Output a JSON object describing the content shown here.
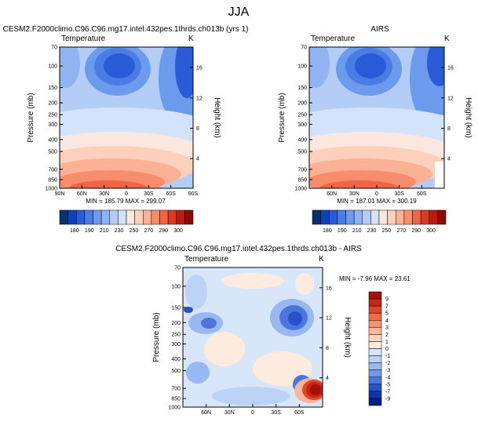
{
  "figure": {
    "season": "JJA"
  },
  "panels": [
    {
      "id": "model",
      "title": "CESM2.F2000climo.C96.C96.mg17.intel.432pes.1thrds.ch013b (yrs 1)",
      "left_label": "Temperature",
      "right_label": "K",
      "stats_text": "MIN = 185.79   MAX = 299.07"
    },
    {
      "id": "obs",
      "title": "AIRS",
      "left_label": "Temperature",
      "right_label": "K",
      "stats_text": "MIN = 187.01   MAX = 300.19"
    },
    {
      "id": "diff",
      "title": "CESM2.F2000climo.C96.C96.mg17.intel.432pes.1thrds.ch013b - AIRS",
      "left_label": "Temperature",
      "right_label": "K",
      "stats_text": "MIN =  -7.96  MAX =  23.61"
    }
  ],
  "chart_data": [
    {
      "type": "heatmap",
      "title": "CESM2.F2000climo.C96.C96.mg17.intel.432pes.1thrds.ch013b (yrs 1)",
      "xlabel": "",
      "ylabel": "Pressure (mb)",
      "y2label": "Height (km)",
      "x_ticks": [
        "90N",
        "60N",
        "30N",
        "0",
        "30S",
        "60S",
        "90S"
      ],
      "y_ticks": [
        "70",
        "100",
        "150",
        "200",
        "250",
        "300",
        "400",
        "500",
        "700",
        "850",
        "1000"
      ],
      "y2_ticks": [
        "16",
        "12",
        "8",
        "4"
      ],
      "colorbar_levels": [
        "180",
        "190",
        "210",
        "230",
        "250",
        "270",
        "290",
        "300"
      ],
      "min": 185.79,
      "max": 299.07
    },
    {
      "type": "heatmap",
      "title": "AIRS",
      "xlabel": "",
      "ylabel": "Pressure (mb)",
      "y2label": "Height (km)",
      "x_ticks": [
        "60N",
        "30N",
        "0",
        "30S",
        "60S"
      ],
      "y_ticks": [
        "70",
        "100",
        "150",
        "200",
        "250",
        "300",
        "400",
        "500",
        "700",
        "850",
        "1000"
      ],
      "y2_ticks": [
        "16",
        "12",
        "8",
        "4"
      ],
      "colorbar_levels": [
        "180",
        "190",
        "210",
        "230",
        "250",
        "270",
        "290",
        "300"
      ],
      "min": 187.01,
      "max": 300.19
    },
    {
      "type": "heatmap",
      "title": "CESM2.F2000climo.C96.C96.mg17.intel.432pes.1thrds.ch013b - AIRS",
      "xlabel": "",
      "ylabel": "Pressure (mb)",
      "y2label": "Height (km)",
      "x_ticks": [
        "60N",
        "30N",
        "0",
        "30S",
        "60S"
      ],
      "y_ticks": [
        "70",
        "100",
        "150",
        "200",
        "250",
        "300",
        "400",
        "500",
        "700",
        "850",
        "1000"
      ],
      "y2_ticks": [
        "16",
        "12",
        "8",
        "4"
      ],
      "colorbar_levels": [
        "9",
        "7",
        "5",
        "4",
        "3",
        "2",
        "1",
        "0",
        "-1",
        "-2",
        "-3",
        "-4",
        "-5",
        "-7",
        "-9"
      ],
      "min": -7.96,
      "max": 23.61
    }
  ],
  "colors": {
    "temp_scale": [
      "#08306b",
      "#0d3fbf",
      "#2a5bd7",
      "#4a7de3",
      "#6c9aec",
      "#90b4f2",
      "#b3cdf7",
      "#d3e3fb",
      "#fbe7de",
      "#fcd0bb",
      "#fbb194",
      "#f78d6b",
      "#ee6645",
      "#dc3a22",
      "#bd1a10",
      "#8b0a05"
    ],
    "diff_scale": [
      "#a50f05",
      "#c82612",
      "#e1452b",
      "#f06a4b",
      "#f69273",
      "#fab69c",
      "#fcd4c0",
      "#fdebe0",
      "#d8e6fa",
      "#bcd2f7",
      "#98b8f1",
      "#7098ea",
      "#4a76de",
      "#2852cb",
      "#0f33a9",
      "#06207c"
    ]
  }
}
